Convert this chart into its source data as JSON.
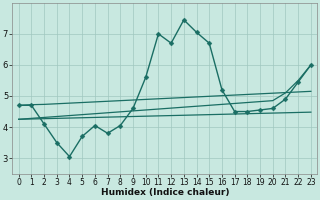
{
  "xlabel": "Humidex (Indice chaleur)",
  "background_color": "#c8e8e0",
  "grid_color": "#a0c8c0",
  "line_color": "#1a6e64",
  "lines": [
    {
      "x": [
        0,
        1,
        2,
        3,
        4,
        5,
        6,
        7,
        8,
        9,
        10,
        11,
        12,
        13,
        14,
        15,
        16,
        17,
        18,
        19,
        20,
        21,
        22,
        23
      ],
      "y": [
        4.7,
        4.7,
        4.1,
        3.5,
        3.05,
        3.7,
        4.05,
        3.8,
        4.05,
        4.6,
        5.6,
        7.0,
        6.7,
        7.45,
        7.05,
        6.7,
        5.2,
        4.5,
        4.5,
        4.55,
        4.6,
        4.9,
        5.45,
        6.0
      ],
      "marker": true,
      "lw": 1.0,
      "ms": 2.5
    },
    {
      "x": [
        0,
        1,
        2,
        3,
        4,
        5,
        6,
        7,
        8,
        9,
        10,
        11,
        12,
        13,
        14,
        15,
        16,
        17,
        18,
        19,
        20,
        21,
        22,
        23
      ],
      "y": [
        4.7,
        4.72,
        4.73,
        4.75,
        4.77,
        4.79,
        4.81,
        4.83,
        4.85,
        4.87,
        4.89,
        4.91,
        4.93,
        4.95,
        4.97,
        4.99,
        5.01,
        5.03,
        5.05,
        5.07,
        5.09,
        5.11,
        5.13,
        5.15
      ],
      "marker": false,
      "lw": 0.9,
      "ms": 0
    },
    {
      "x": [
        0,
        1,
        2,
        3,
        4,
        5,
        6,
        7,
        8,
        9,
        10,
        11,
        12,
        13,
        14,
        15,
        16,
        17,
        18,
        19,
        20,
        21,
        22,
        23
      ],
      "y": [
        4.25,
        4.26,
        4.27,
        4.28,
        4.29,
        4.3,
        4.31,
        4.32,
        4.33,
        4.34,
        4.35,
        4.36,
        4.37,
        4.38,
        4.39,
        4.4,
        4.41,
        4.42,
        4.43,
        4.44,
        4.45,
        4.46,
        4.47,
        4.48
      ],
      "marker": false,
      "lw": 0.9,
      "ms": 0
    },
    {
      "x": [
        0,
        1,
        2,
        3,
        4,
        5,
        6,
        7,
        8,
        9,
        10,
        11,
        12,
        13,
        14,
        15,
        16,
        17,
        18,
        19,
        20,
        21,
        22,
        23
      ],
      "y": [
        4.25,
        4.28,
        4.31,
        4.34,
        4.37,
        4.4,
        4.43,
        4.46,
        4.49,
        4.52,
        4.55,
        4.58,
        4.61,
        4.64,
        4.67,
        4.7,
        4.73,
        4.76,
        4.79,
        4.82,
        4.85,
        5.1,
        5.5,
        6.0
      ],
      "marker": false,
      "lw": 0.9,
      "ms": 0
    }
  ],
  "ylim": [
    2.5,
    8.0
  ],
  "xlim": [
    -0.5,
    23.5
  ],
  "yticks": [
    3,
    4,
    5,
    6,
    7
  ],
  "xticks": [
    0,
    1,
    2,
    3,
    4,
    5,
    6,
    7,
    8,
    9,
    10,
    11,
    12,
    13,
    14,
    15,
    16,
    17,
    18,
    19,
    20,
    21,
    22,
    23
  ],
  "tick_fontsize": 5.5,
  "xlabel_fontsize": 6.5
}
